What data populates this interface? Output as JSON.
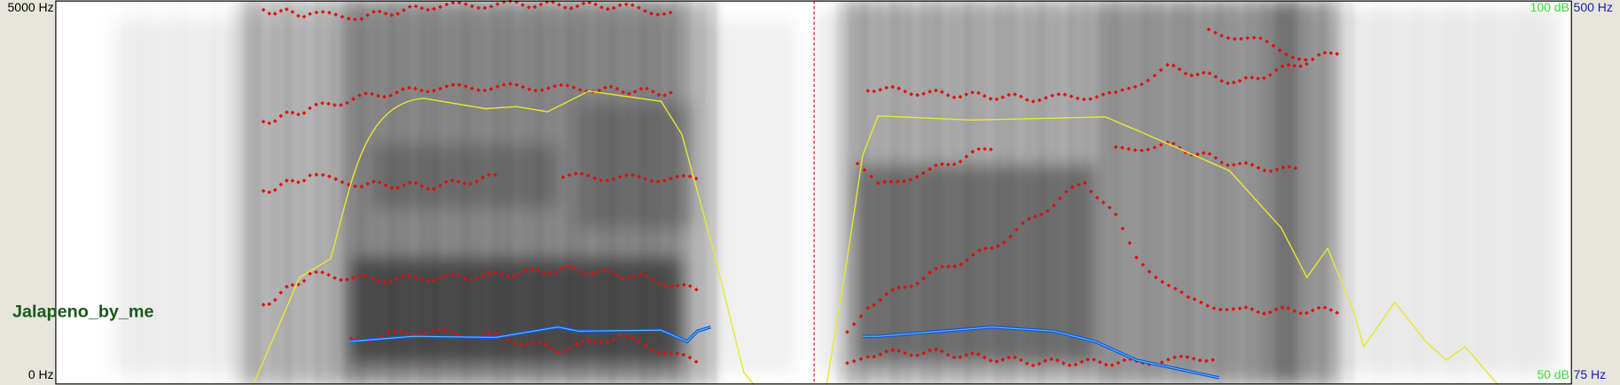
{
  "frequency_axis": {
    "top": "5000 Hz",
    "bottom": "0 Hz"
  },
  "intensity_axis": {
    "top": "100 dB",
    "bottom": "50 dB"
  },
  "pitch_axis": {
    "top": "500 Hz",
    "bottom": "75 Hz"
  },
  "sound_name": "Jalapeno_by_me"
}
